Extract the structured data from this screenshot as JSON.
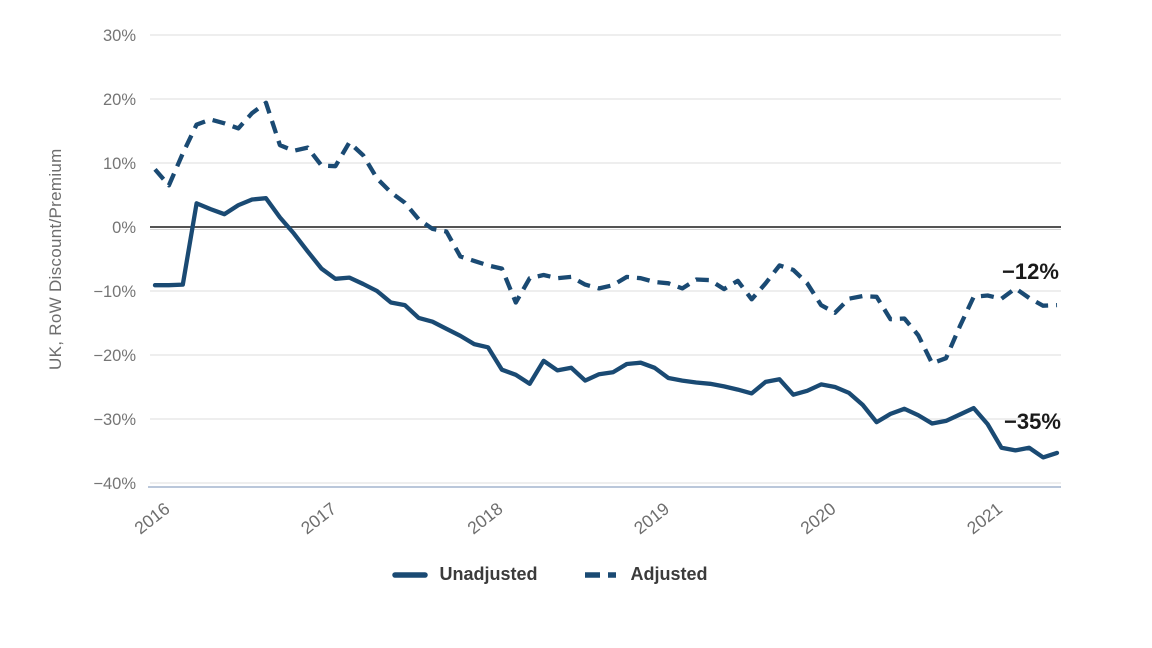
{
  "chart_data": {
    "type": "line",
    "title": "",
    "ylabel": "UK, RoW Discount/Premium",
    "x_ticks": [
      "2016",
      "2017",
      "2018",
      "2019",
      "2020",
      "2021"
    ],
    "x_range": "Monthly, Jan 2016 - Jun 2021",
    "ylim": [
      -40,
      33
    ],
    "grid": "horizontal-only",
    "legend_position": "bottom-center",
    "y_ticks": [
      {
        "value": 30,
        "label": "30%"
      },
      {
        "value": 20,
        "label": "20%"
      },
      {
        "value": 10,
        "label": "10%"
      },
      {
        "value": 0,
        "label": "0%"
      },
      {
        "value": -10,
        "label": "−10%"
      },
      {
        "value": -20,
        "label": "−20%"
      },
      {
        "value": -30,
        "label": "−30%"
      },
      {
        "value": -40,
        "label": "−40%"
      }
    ],
    "series": [
      {
        "name": "Unadjusted",
        "style": "solid",
        "values": [
          -9.1,
          -9.1,
          -9.0,
          3.7,
          2.8,
          2.0,
          3.4,
          4.3,
          4.5,
          1.5,
          -1.0,
          -3.8,
          -6.5,
          -8.1,
          -7.9,
          -8.9,
          -10.0,
          -11.8,
          -12.2,
          -14.2,
          -14.8,
          -15.9,
          -17.0,
          -18.3,
          -18.8,
          -22.3,
          -23.1,
          -24.5,
          -20.9,
          -22.4,
          -22.0,
          -24.0,
          -23.0,
          -22.7,
          -21.4,
          -21.2,
          -22.0,
          -23.6,
          -24.0,
          -24.3,
          -24.5,
          -24.9,
          -25.4,
          -26.0,
          -24.2,
          -23.8,
          -26.2,
          -25.6,
          -24.6,
          -25.0,
          -25.9,
          -27.8,
          -30.5,
          -29.2,
          -28.4,
          -29.4,
          -30.7,
          -30.3,
          -29.3,
          -28.3,
          -30.8,
          -34.5,
          -34.9,
          -34.5,
          -36.0,
          -35.3
        ]
      },
      {
        "name": "Adjusted",
        "style": "dashed",
        "values": [
          9.0,
          6.5,
          11.5,
          16.0,
          16.8,
          16.2,
          15.4,
          17.8,
          19.4,
          12.8,
          11.9,
          12.4,
          9.6,
          9.5,
          13.2,
          11.2,
          7.6,
          5.4,
          3.8,
          1.2,
          -0.3,
          -0.7,
          -4.6,
          -5.3,
          -6.0,
          -6.5,
          -11.8,
          -8.0,
          -7.5,
          -8.0,
          -7.8,
          -9.0,
          -9.6,
          -9.1,
          -7.8,
          -8.0,
          -8.6,
          -8.8,
          -9.6,
          -8.2,
          -8.3,
          -9.7,
          -8.4,
          -11.3,
          -8.8,
          -6.0,
          -6.7,
          -8.8,
          -12.2,
          -13.4,
          -11.2,
          -10.8,
          -10.9,
          -14.4,
          -14.3,
          -16.9,
          -21.3,
          -20.5,
          -15.5,
          -10.9,
          -10.7,
          -11.2,
          -9.6,
          -11.1,
          -12.3,
          -12.2
        ]
      }
    ],
    "annotations": [
      {
        "text": "−12%",
        "series": "Adjusted"
      },
      {
        "text": "−35%",
        "series": "Unadjusted"
      }
    ],
    "colors": {
      "line": "#1A4A73",
      "grid": "#E4E4E4",
      "zero_line": "#3D3D3D",
      "axis_line": "#BAC7DA",
      "tick_text": "#757575",
      "annotation_text": "#1A1A1A",
      "legend_text": "#3B3B3B"
    }
  }
}
